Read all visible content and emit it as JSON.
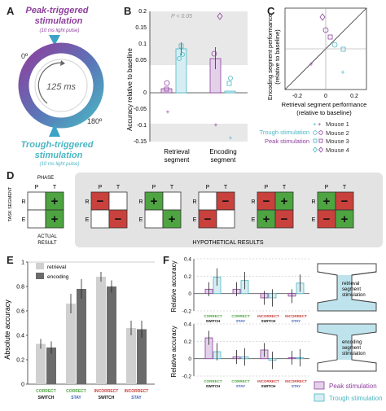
{
  "colors": {
    "peak": "#8e3f9d",
    "trough": "#4bb6c3",
    "peak_fill": "#e3d1ea",
    "trough_fill": "#d6eef3",
    "green": "#4da440",
    "red": "#c8413c",
    "gray_light": "#d0d0d0",
    "gray_dark": "#6b6b6b",
    "shade": "#e6e6e6"
  },
  "panelA": {
    "letter": "A",
    "peak_title1": "Peak-triggered",
    "peak_title2": "stimulation",
    "peak_sub": "(10 ms light pulse)",
    "trough_title1": "Trough-triggered",
    "trough_title2": "stimulation",
    "trough_sub": "(10 ms light pulse)",
    "deg0": "0º",
    "deg180": "180º",
    "period": "125 ms"
  },
  "panelB": {
    "letter": "B",
    "ylabel": "Accuracy relative to baseline",
    "sig": "P < 0.05",
    "yticks": [
      "0.2",
      "0.15",
      "0.1",
      "0.05",
      "0",
      "-0.05",
      "-0.1",
      "-0.15"
    ],
    "xlabels": [
      [
        "Retrieval",
        "segment"
      ],
      [
        "Encoding",
        "segment"
      ]
    ]
  },
  "panelC": {
    "letter": "C",
    "ylabel1": "Encoding segment performance",
    "ylabel2": "(relative to baseline)",
    "xlabel1": "Retrieval segment performance",
    "xlabel2": "(relative to baseline)",
    "xticks": [
      "-0.2",
      "0",
      "0.2"
    ],
    "legend": {
      "trough": "Trough stimulation",
      "peak": "Peak stimulation",
      "mice": [
        "Mouse 1",
        "Mouse 2",
        "Mouse 3",
        "Mouse 4"
      ]
    }
  },
  "panelD": {
    "letter": "D",
    "phase": "PHASE",
    "task_segment": "TASK SEGMENT",
    "col_p": "P",
    "col_t": "T",
    "row_r": "R",
    "row_e": "E",
    "actual1": "ACTUAL",
    "actual2": "RESULT",
    "hypothetical": "HYPOTHETICAL RESULTS",
    "plus": "+",
    "minus": "−"
  },
  "panelE": {
    "letter": "E",
    "ylabel": "Absolute accuracy",
    "yticks": [
      "1",
      "0.8",
      "0.6",
      "0.4",
      "0.2",
      "0"
    ],
    "legend": [
      "retrieval",
      "encoding"
    ],
    "groups": [
      {
        "l1": "CORRECT",
        "l2": "SWITCH",
        "c1": "#4da440"
      },
      {
        "l1": "CORRECT",
        "l2": "STAY",
        "c1": "#4da440"
      },
      {
        "l1": "INCORRECT",
        "l2": "SWITCH",
        "c1": "#c8413c"
      },
      {
        "l1": "INCORRECT",
        "l2": "STAY",
        "c1": "#c8413c"
      }
    ]
  },
  "panelF": {
    "letter": "F",
    "ylabel": "Relative accuracy",
    "yticks_top": [
      "0.4",
      "0.2",
      "0",
      "-0.2"
    ],
    "yticks_bot": [
      "0.4",
      "0.2",
      "0",
      "-0.2"
    ],
    "maze_top": [
      "retrieval",
      "segment",
      "stimulation"
    ],
    "maze_bot": [
      "encoding",
      "segment",
      "stimulation"
    ],
    "legend": [
      "Peak stimulation",
      "Trough stimulation"
    ]
  },
  "chart_data": [
    {
      "panel": "E",
      "type": "bar",
      "categories": [
        "CORRECT SWITCH",
        "CORRECT STAY",
        "INCORRECT SWITCH",
        "INCORRECT STAY"
      ],
      "series": [
        {
          "name": "retrieval",
          "values": [
            0.33,
            0.66,
            0.88,
            0.46
          ]
        },
        {
          "name": "encoding",
          "values": [
            0.3,
            0.78,
            0.8,
            0.45
          ]
        }
      ],
      "ylabel": "Absolute accuracy",
      "ylim": [
        0,
        1
      ]
    },
    {
      "panel": "F-top",
      "type": "bar",
      "categories": [
        "CORRECT SWITCH",
        "CORRECT STAY",
        "INCORRECT SWITCH",
        "INCORRECT STAY"
      ],
      "series": [
        {
          "name": "Peak stimulation",
          "values": [
            0.05,
            0.05,
            -0.05,
            -0.03
          ]
        },
        {
          "name": "Trough stimulation",
          "values": [
            0.19,
            0.15,
            -0.05,
            0.12
          ]
        }
      ],
      "ylabel": "Relative accuracy",
      "ylim": [
        -0.2,
        0.4
      ]
    },
    {
      "panel": "F-bottom",
      "type": "bar",
      "categories": [
        "CORRECT SWITCH",
        "CORRECT STAY",
        "INCORRECT SWITCH",
        "INCORRECT STAY"
      ],
      "series": [
        {
          "name": "Peak stimulation",
          "values": [
            0.24,
            0.02,
            0.1,
            0.01
          ]
        },
        {
          "name": "Trough stimulation",
          "values": [
            0.08,
            0.02,
            -0.02,
            0.01
          ]
        }
      ],
      "ylabel": "Relative accuracy",
      "ylim": [
        -0.2,
        0.4
      ]
    }
  ]
}
